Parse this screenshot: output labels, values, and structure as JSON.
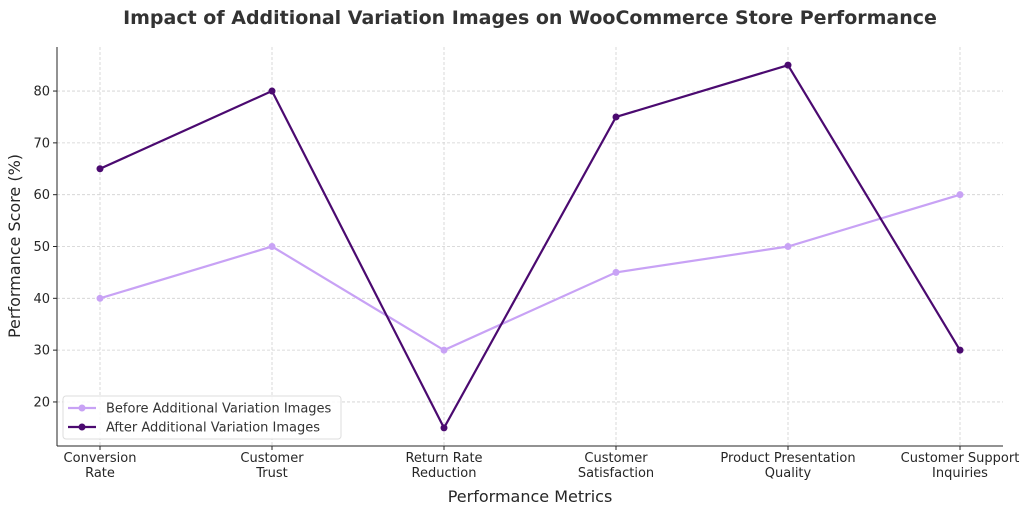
{
  "chart_data": {
    "type": "line",
    "title": "Impact of Additional Variation Images on WooCommerce Store Performance",
    "xlabel": "Performance Metrics",
    "ylabel": "Performance Score (%)",
    "categories": [
      "Conversion\nRate",
      "Customer\nTrust",
      "Return Rate\nReduction",
      "Customer\nSatisfaction",
      "Product Presentation\nQuality",
      "Customer Support\nInquiries"
    ],
    "yticks": [
      20,
      30,
      40,
      50,
      60,
      70,
      80
    ],
    "ylim": [
      11.5,
      88.5
    ],
    "grid": true,
    "legend_position": "lower-left",
    "series": [
      {
        "name": "Before Additional Variation Images",
        "color": "#c8a2f5",
        "values": [
          40,
          50,
          30,
          45,
          50,
          60
        ]
      },
      {
        "name": "After Additional Variation Images",
        "color": "#4b0a70",
        "values": [
          65,
          80,
          15,
          75,
          85,
          30
        ]
      }
    ]
  }
}
